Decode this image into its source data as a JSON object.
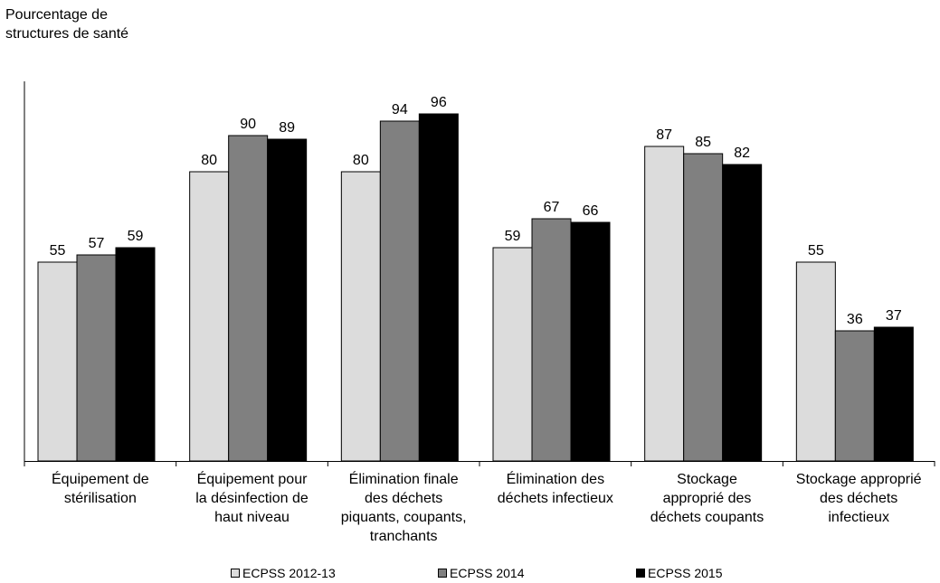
{
  "chart_data": {
    "type": "bar",
    "ylabel_lines": [
      "Pourcentage de",
      "structures de santé"
    ],
    "categories": [
      [
        "Équipement de",
        "stérilisation"
      ],
      [
        "Équipement pour",
        "la désinfection de",
        "haut niveau"
      ],
      [
        "Élimination finale",
        "des déchets",
        "piquants, coupants,",
        "tranchants"
      ],
      [
        "Élimination des",
        "déchets infectieux"
      ],
      [
        "Stockage",
        "approprié des",
        "déchets coupants"
      ],
      [
        "Stockage approprié",
        "des déchets",
        "infectieux"
      ]
    ],
    "series": [
      {
        "name": "ECPSS 2012-13",
        "color": "#dcdcdc",
        "values": [
          55,
          80,
          80,
          59,
          87,
          55
        ]
      },
      {
        "name": "ECPSS 2014",
        "color": "#808080",
        "values": [
          57,
          90,
          94,
          67,
          85,
          36
        ]
      },
      {
        "name": "ECPSS 2015",
        "color": "#000000",
        "values": [
          59,
          89,
          96,
          66,
          82,
          37
        ]
      }
    ],
    "ylim": [
      0,
      100
    ],
    "grid": false,
    "legend_position": "bottom"
  }
}
